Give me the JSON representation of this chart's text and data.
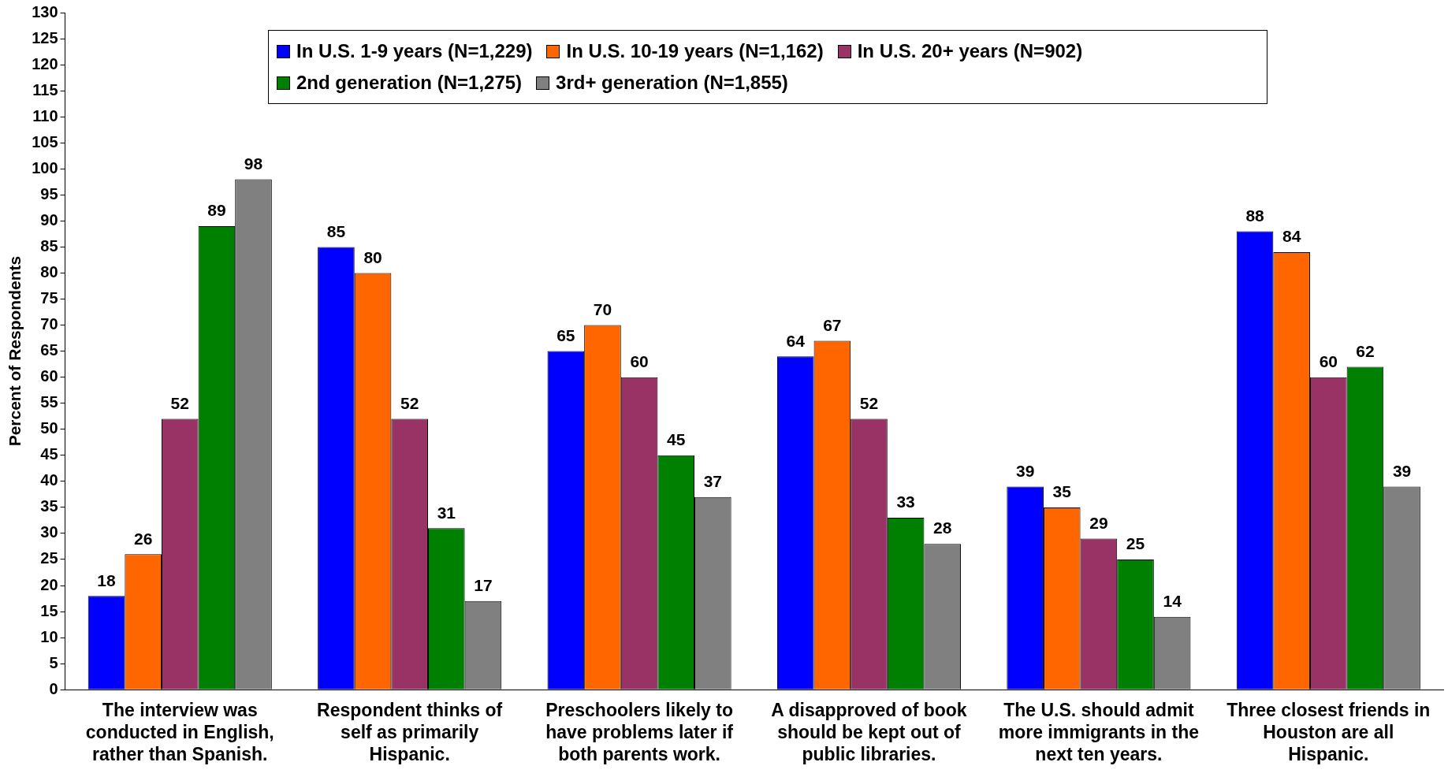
{
  "chart_data": {
    "type": "bar",
    "ylabel": "Percent of Respondents",
    "categories": [
      "The interview was conducted in English, rather than Spanish.",
      "Respondent thinks of self as primarily Hispanic.",
      "Preschoolers likely to have problems later if both parents work.",
      "A disapproved of book should be kept out of public libraries.",
      "The U.S. should admit more immigrants in the next ten years.",
      "Three closest friends in Houston are all Hispanic."
    ],
    "series": [
      {
        "name": "In U.S. 1-9 years (N=1,229)",
        "color": "#0000ff",
        "values": [
          18,
          85,
          65,
          64,
          39,
          88
        ]
      },
      {
        "name": "In U.S. 10-19 years (N=1,162)",
        "color": "#ff6600",
        "values": [
          26,
          80,
          70,
          67,
          35,
          84
        ]
      },
      {
        "name": "In U.S. 20+ years (N=902)",
        "color": "#993366",
        "values": [
          52,
          52,
          60,
          52,
          29,
          60
        ]
      },
      {
        "name": "2nd generation (N=1,275)",
        "color": "#008000",
        "values": [
          89,
          31,
          45,
          33,
          25,
          62
        ]
      },
      {
        "name": "3rd+ generation (N=1,855)",
        "color": "#808080",
        "values": [
          98,
          17,
          37,
          28,
          14,
          39
        ]
      }
    ],
    "ylim": [
      0,
      130
    ],
    "yticks": [
      0,
      5,
      10,
      15,
      20,
      25,
      30,
      35,
      40,
      45,
      50,
      55,
      60,
      65,
      70,
      75,
      80,
      85,
      90,
      95,
      100,
      105,
      110,
      115,
      120,
      125,
      130
    ],
    "grid": false,
    "legend": "top",
    "data_labels": true
  }
}
